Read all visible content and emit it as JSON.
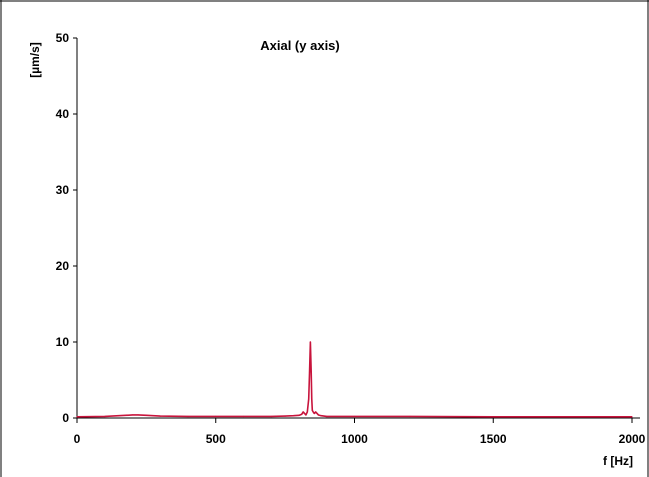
{
  "chart_data": {
    "type": "line",
    "title": "Axial (y axis)",
    "xlabel": "f [Hz]",
    "ylabel": "[µm/s]",
    "xlim": [
      0,
      2000
    ],
    "ylim": [
      0,
      50
    ],
    "xticks": [
      0,
      500,
      1000,
      1500,
      2000
    ],
    "xtick_labels": [
      "0",
      "500",
      "1000",
      "1500",
      "2000"
    ],
    "yticks": [
      0,
      10,
      20,
      30,
      40,
      50
    ],
    "ytick_labels": [
      "0",
      "10",
      "20",
      "30",
      "40",
      "50"
    ],
    "grid": false,
    "colors": {
      "series": "#c8143c",
      "axis": "#000000",
      "frame": "#000000"
    },
    "series": [
      {
        "x": [
          0,
          100,
          150,
          200,
          220,
          250,
          300,
          400,
          500,
          600,
          700,
          750,
          780,
          800,
          810,
          815,
          820,
          825,
          830,
          835,
          838,
          841,
          844,
          846,
          848,
          851,
          855,
          860,
          870,
          880,
          900,
          1000,
          1200,
          1500,
          1800,
          2000
        ],
        "y": [
          0.15,
          0.2,
          0.3,
          0.4,
          0.4,
          0.35,
          0.25,
          0.2,
          0.2,
          0.2,
          0.2,
          0.25,
          0.3,
          0.35,
          0.5,
          0.8,
          0.6,
          0.4,
          0.8,
          2.5,
          6.0,
          10.0,
          6.0,
          2.5,
          1.0,
          0.8,
          0.6,
          0.8,
          0.4,
          0.3,
          0.2,
          0.2,
          0.2,
          0.15,
          0.15,
          0.15
        ]
      }
    ]
  }
}
